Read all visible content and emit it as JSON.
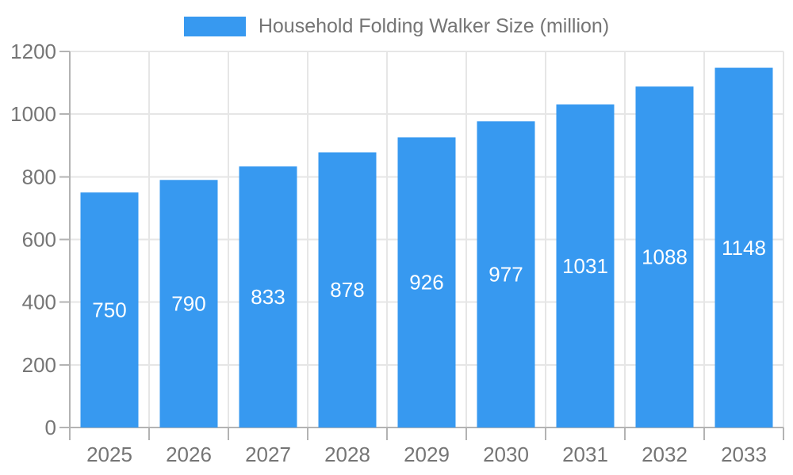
{
  "legend": {
    "position": "top",
    "swatch_color": "#3799F0"
  },
  "colors": {
    "bar": "#3799F0",
    "bar_value_label": "#FFFFFF",
    "axis_text": "#757575",
    "legend_text": "#757575",
    "gridline": "#E6E6E6",
    "axis_line": "#B3B3B3",
    "background": "#FFFFFF"
  },
  "chart_data": {
    "type": "bar",
    "title": "Household Folding Walker Size (million)",
    "categories": [
      "2025",
      "2026",
      "2027",
      "2028",
      "2029",
      "2030",
      "2031",
      "2032",
      "2033"
    ],
    "series": [
      {
        "name": "Household Folding Walker Size (million)",
        "values": [
          750,
          790,
          833,
          878,
          926,
          977,
          1031,
          1088,
          1148
        ]
      }
    ],
    "xlabel": "",
    "ylabel": "",
    "ylim": [
      0,
      1200
    ],
    "yticks": [
      0,
      200,
      400,
      600,
      800,
      1000,
      1200
    ],
    "grid": true,
    "legend_position": "top",
    "value_label_position": "inside-center"
  }
}
